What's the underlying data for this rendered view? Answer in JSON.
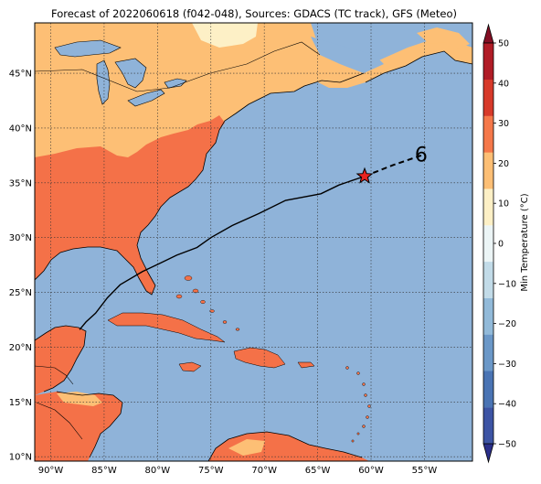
{
  "title": "Forecast of 2022060618 (f042-048), Sources: GDACS (TC track), GFS (Meteo)",
  "map": {
    "lon_range": [
      -91.5,
      -50.5
    ],
    "lat_range": [
      9.6,
      49.6
    ],
    "ocean_color": "#8fb3d9",
    "lon_ticks": [
      {
        "value": -90,
        "label": "90°W"
      },
      {
        "value": -85,
        "label": "85°W"
      },
      {
        "value": -80,
        "label": "80°W"
      },
      {
        "value": -75,
        "label": "75°W"
      },
      {
        "value": -70,
        "label": "70°W"
      },
      {
        "value": -65,
        "label": "65°W"
      },
      {
        "value": -60,
        "label": "60°W"
      },
      {
        "value": -55,
        "label": "55°W"
      }
    ],
    "lat_ticks": [
      {
        "value": 10,
        "label": "10°N"
      },
      {
        "value": 15,
        "label": "15°N"
      },
      {
        "value": 20,
        "label": "20°N"
      },
      {
        "value": 25,
        "label": "25°N"
      },
      {
        "value": 30,
        "label": "30°N"
      },
      {
        "value": 35,
        "label": "35°N"
      },
      {
        "value": 40,
        "label": "40°N"
      },
      {
        "value": 45,
        "label": "45°N"
      }
    ],
    "track_solid": [
      [
        -87.3,
        21.6
      ],
      [
        -86.7,
        22.3
      ],
      [
        -85.8,
        23.1
      ],
      [
        -84.7,
        24.5
      ],
      [
        -83.5,
        25.7
      ],
      [
        -81.4,
        26.9
      ],
      [
        -79.9,
        27.6
      ],
      [
        -78.2,
        28.4
      ],
      [
        -76.3,
        29.1
      ],
      [
        -75.0,
        30.0
      ],
      [
        -73.0,
        31.1
      ],
      [
        -70.5,
        32.2
      ],
      [
        -68.0,
        33.4
      ],
      [
        -64.7,
        34.0
      ],
      [
        -63.0,
        34.8
      ],
      [
        -60.6,
        35.6
      ]
    ],
    "track_forecast": [
      [
        -60.6,
        35.6
      ],
      [
        -58.0,
        36.6
      ],
      [
        -55.3,
        37.5
      ]
    ],
    "storm_position": [
      -60.6,
      35.6
    ],
    "storm_color": "#e8231f",
    "end_symbol_position": [
      -55.3,
      37.6
    ],
    "end_symbol": "6"
  },
  "colorbar": {
    "label": "Min Temperature (°C)",
    "ticks": [
      "−50",
      "−40",
      "−30",
      "−20",
      "−10",
      "0",
      "10",
      "20",
      "30",
      "40",
      "50"
    ],
    "colors": [
      "#2a2f8a",
      "#3d54a4",
      "#4a74b4",
      "#6b98c8",
      "#92bad9",
      "#c2dbe8",
      "#ecf5f6",
      "#fdf0c6",
      "#fdbf75",
      "#f5784a",
      "#d73a2a",
      "#b01c26",
      "#840f24"
    ]
  }
}
